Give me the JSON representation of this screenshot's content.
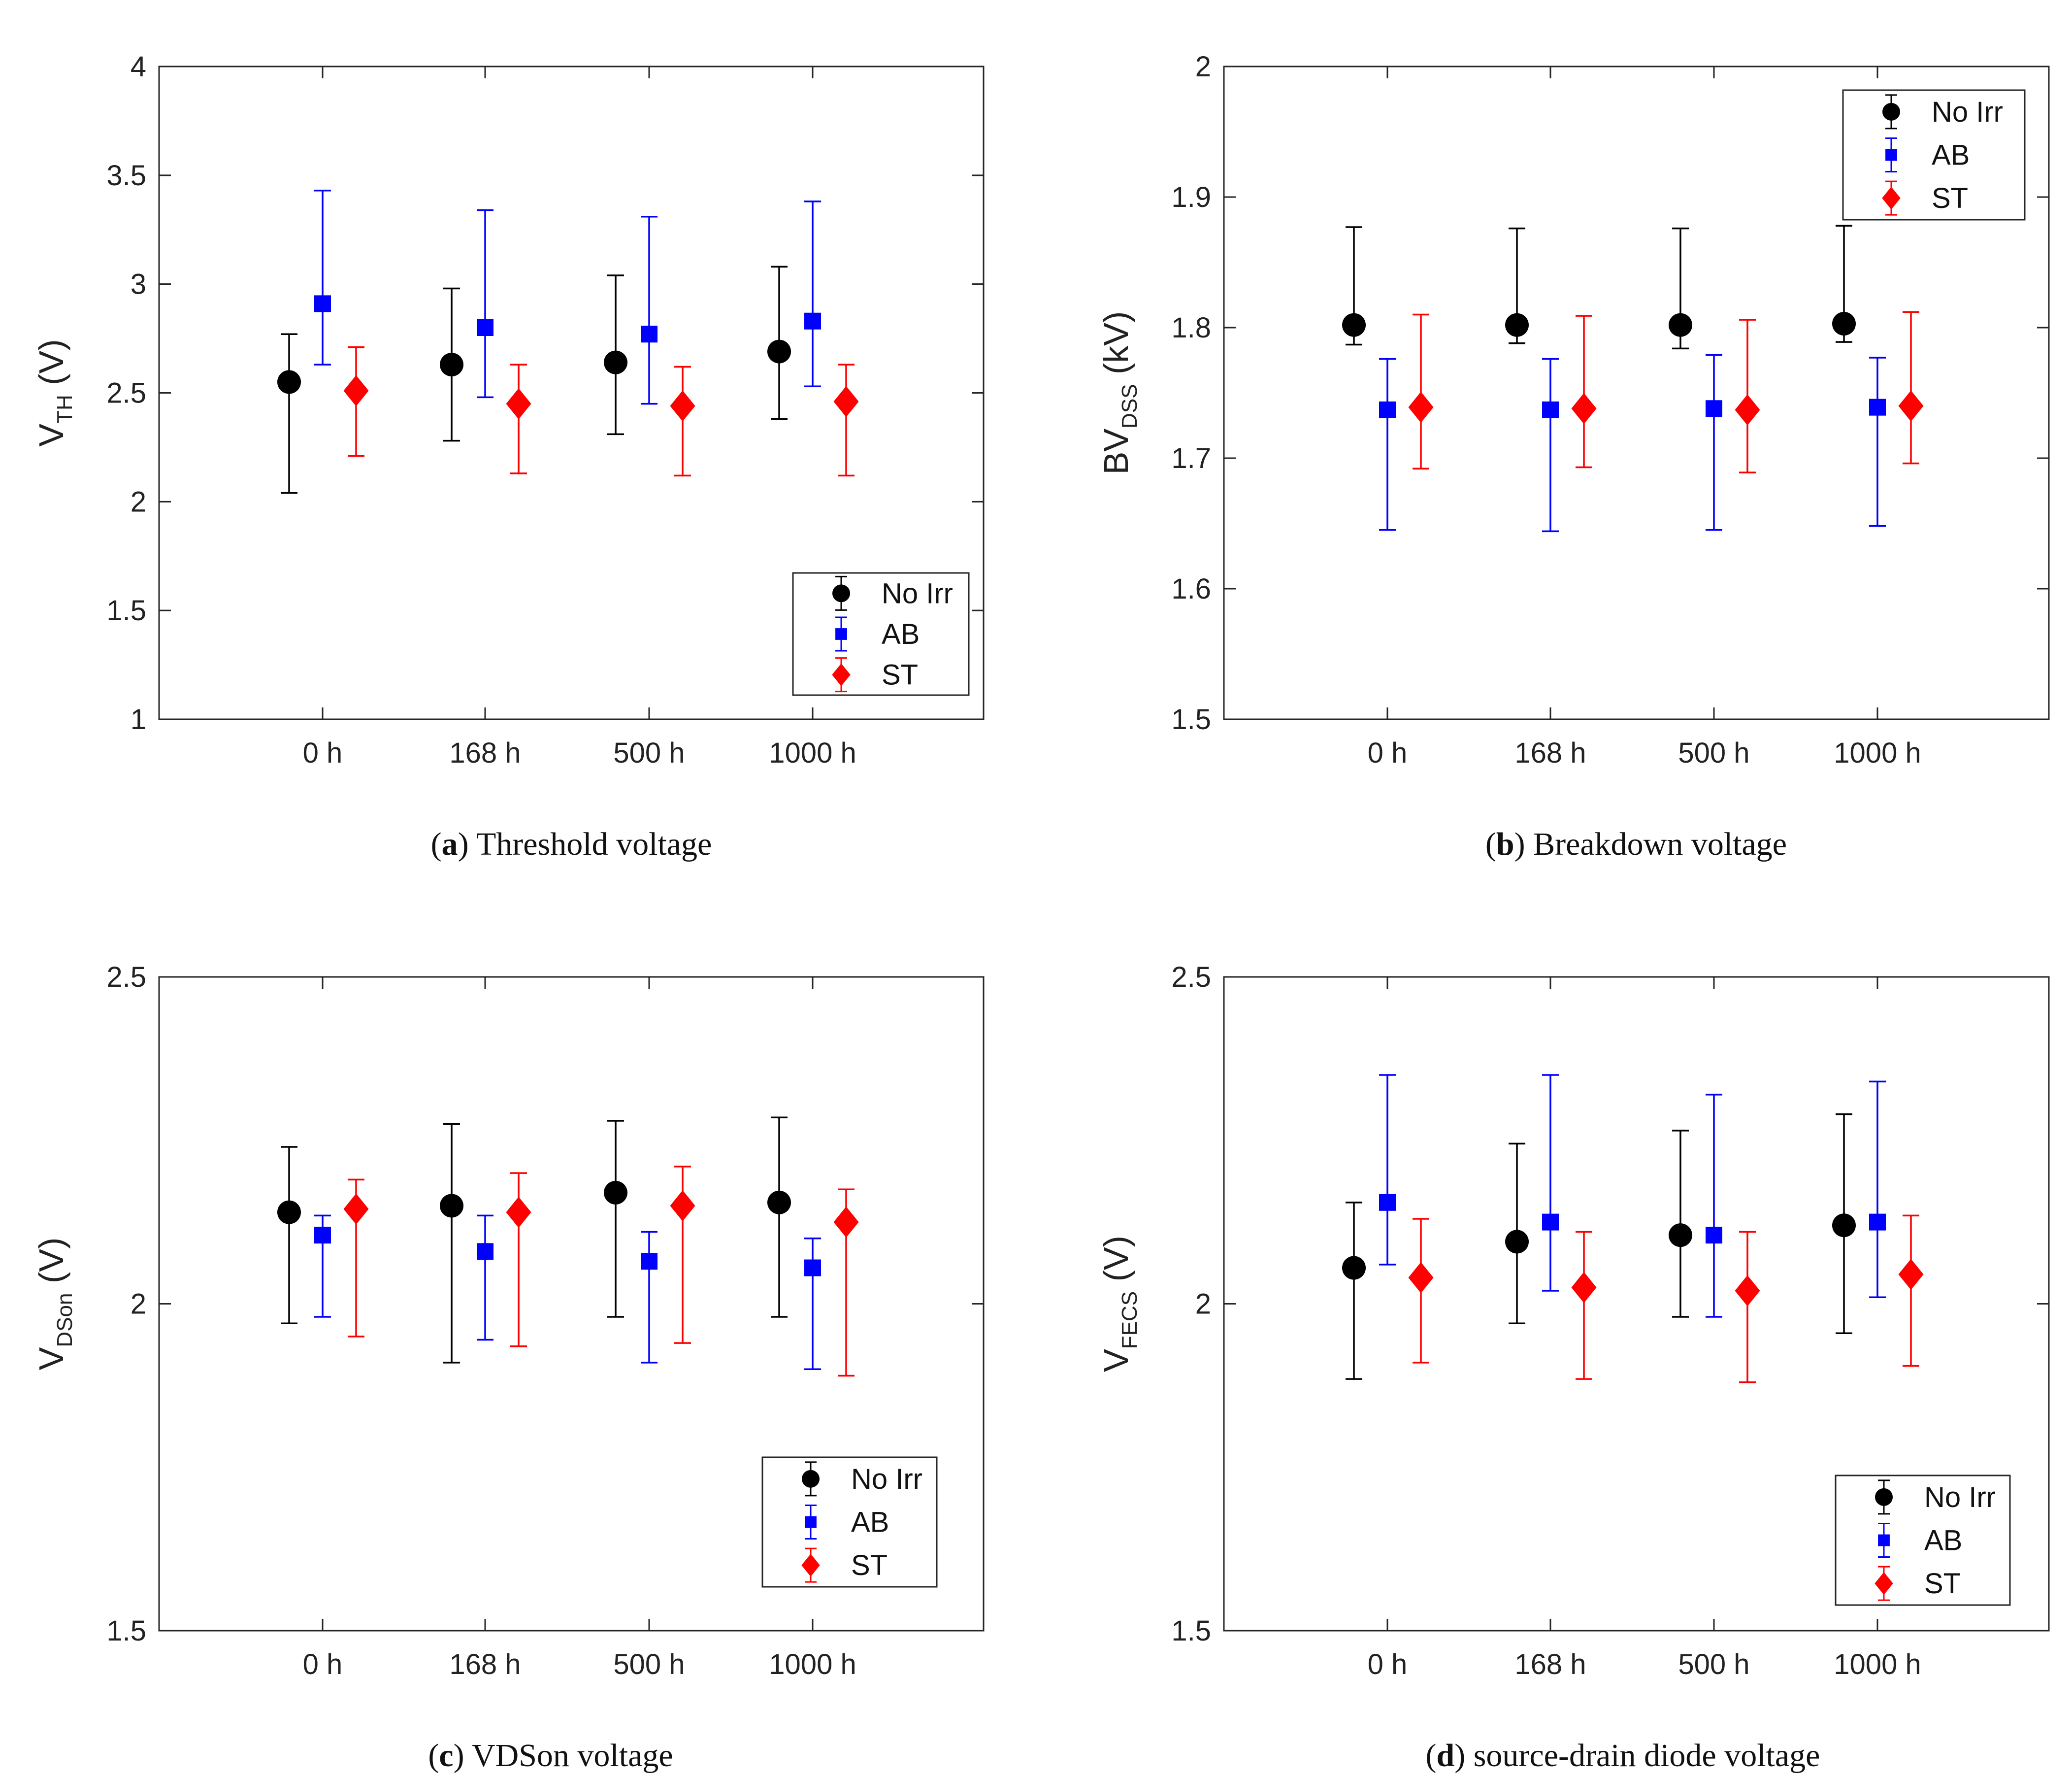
{
  "chart_data": [
    {
      "id": "a",
      "type": "scatter",
      "subtype": "errorbar",
      "caption": {
        "letter": "a",
        "text": "Threshold voltage"
      },
      "ylabel": {
        "main": "V",
        "sub": "TH",
        "unit": " (V)"
      },
      "categories": [
        "0 h",
        "168 h",
        "500 h",
        "1000 h"
      ],
      "ylim": [
        1,
        4
      ],
      "yticks": [
        "1",
        "1.5",
        "2",
        "2.5",
        "3",
        "3.5",
        "4"
      ],
      "legend_position": "bottom-right",
      "series": [
        {
          "name": "No Irr",
          "color": "#000000",
          "marker": "circle",
          "values": [
            2.55,
            2.63,
            2.64,
            2.69
          ],
          "lower": [
            2.04,
            2.28,
            2.31,
            2.38
          ],
          "upper": [
            2.77,
            2.98,
            3.04,
            3.08
          ]
        },
        {
          "name": "AB",
          "color": "#0000ff",
          "marker": "square",
          "values": [
            2.91,
            2.8,
            2.77,
            2.83
          ],
          "lower": [
            2.63,
            2.48,
            2.45,
            2.53
          ],
          "upper": [
            3.43,
            3.34,
            3.31,
            3.38
          ]
        },
        {
          "name": "ST",
          "color": "#ff0000",
          "marker": "diamond",
          "values": [
            2.51,
            2.45,
            2.44,
            2.46
          ],
          "lower": [
            2.21,
            2.13,
            2.12,
            2.12
          ],
          "upper": [
            2.71,
            2.63,
            2.62,
            2.63
          ]
        }
      ]
    },
    {
      "id": "b",
      "type": "scatter",
      "subtype": "errorbar",
      "caption": {
        "letter": "b",
        "text": "Breakdown voltage"
      },
      "ylabel": {
        "main": "BV",
        "sub": "DSS",
        "unit": " (kV)"
      },
      "categories": [
        "0 h",
        "168 h",
        "500 h",
        "1000 h"
      ],
      "ylim": [
        1.5,
        2
      ],
      "yticks": [
        "1.5",
        "1.6",
        "1.7",
        "1.8",
        "1.9",
        "2"
      ],
      "legend_position": "top-right",
      "series": [
        {
          "name": "No Irr",
          "color": "#000000",
          "marker": "circle",
          "values": [
            1.802,
            1.802,
            1.802,
            1.803
          ],
          "lower": [
            1.787,
            1.788,
            1.784,
            1.789
          ],
          "upper": [
            1.877,
            1.876,
            1.876,
            1.878
          ]
        },
        {
          "name": "AB",
          "color": "#0000ff",
          "marker": "square",
          "values": [
            1.737,
            1.737,
            1.738,
            1.739
          ],
          "lower": [
            1.645,
            1.644,
            1.645,
            1.648
          ],
          "upper": [
            1.776,
            1.776,
            1.779,
            1.777
          ]
        },
        {
          "name": "ST",
          "color": "#ff0000",
          "marker": "diamond",
          "values": [
            1.739,
            1.738,
            1.737,
            1.74
          ],
          "lower": [
            1.692,
            1.693,
            1.689,
            1.696
          ],
          "upper": [
            1.81,
            1.809,
            1.806,
            1.812
          ]
        }
      ]
    },
    {
      "id": "c",
      "type": "scatter",
      "subtype": "errorbar",
      "caption": {
        "letter": "c",
        "text": "VDSon voltage"
      },
      "ylabel": {
        "main": "V",
        "sub": "DSon",
        "unit": " (V)"
      },
      "categories": [
        "0 h",
        "168 h",
        "500 h",
        "1000 h"
      ],
      "ylim": [
        1.5,
        2.5
      ],
      "yticks": [
        "1.5",
        "2",
        "2.5"
      ],
      "legend_position": "bottom-right",
      "series": [
        {
          "name": "No Irr",
          "color": "#000000",
          "marker": "circle",
          "values": [
            2.14,
            2.15,
            2.17,
            2.155
          ],
          "lower": [
            1.97,
            1.91,
            1.98,
            1.98
          ],
          "upper": [
            2.24,
            2.275,
            2.28,
            2.285
          ]
        },
        {
          "name": "AB",
          "color": "#0000ff",
          "marker": "square",
          "values": [
            2.105,
            2.08,
            2.065,
            2.055
          ],
          "lower": [
            1.98,
            1.945,
            1.91,
            1.9
          ],
          "upper": [
            2.135,
            2.135,
            2.11,
            2.1
          ]
        },
        {
          "name": "ST",
          "color": "#ff0000",
          "marker": "diamond",
          "values": [
            2.145,
            2.14,
            2.15,
            2.125
          ],
          "lower": [
            1.95,
            1.935,
            1.94,
            1.89
          ],
          "upper": [
            2.19,
            2.2,
            2.21,
            2.175
          ]
        }
      ]
    },
    {
      "id": "d",
      "type": "scatter",
      "subtype": "errorbar",
      "caption": {
        "letter": "d",
        "text": "source-drain diode voltage"
      },
      "ylabel": {
        "main": "V",
        "sub": "FECS",
        "unit": " (V)"
      },
      "categories": [
        "0 h",
        "168 h",
        "500 h",
        "1000 h"
      ],
      "ylim": [
        1.5,
        2.5
      ],
      "yticks": [
        "1.5",
        "2",
        "2.5"
      ],
      "legend_position": "bottom-right",
      "series": [
        {
          "name": "No Irr",
          "color": "#000000",
          "marker": "circle",
          "values": [
            2.055,
            2.095,
            2.105,
            2.12
          ],
          "lower": [
            1.885,
            1.97,
            1.98,
            1.955
          ],
          "upper": [
            2.155,
            2.245,
            2.265,
            2.29
          ]
        },
        {
          "name": "AB",
          "color": "#0000ff",
          "marker": "square",
          "values": [
            2.155,
            2.125,
            2.105,
            2.125
          ],
          "lower": [
            2.06,
            2.02,
            1.98,
            2.01
          ],
          "upper": [
            2.35,
            2.35,
            2.32,
            2.34
          ]
        },
        {
          "name": "ST",
          "color": "#ff0000",
          "marker": "diamond",
          "values": [
            2.04,
            2.025,
            2.02,
            2.045
          ],
          "lower": [
            1.91,
            1.885,
            1.88,
            1.905
          ],
          "upper": [
            2.13,
            2.11,
            2.11,
            2.135
          ]
        }
      ]
    }
  ]
}
